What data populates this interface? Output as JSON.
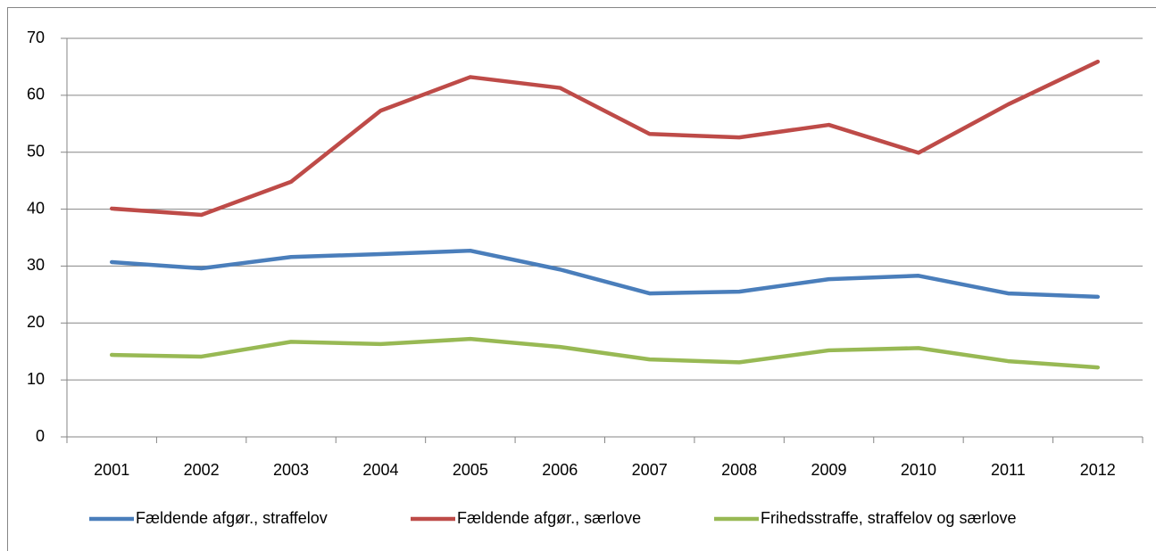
{
  "chart_data": {
    "type": "line",
    "categories": [
      "2001",
      "2002",
      "2003",
      "2004",
      "2005",
      "2006",
      "2007",
      "2008",
      "2009",
      "2010",
      "2011",
      "2012"
    ],
    "series": [
      {
        "name": "Fældende afgør., straffelov",
        "color": "#4a7ebb",
        "values": [
          30.7,
          29.6,
          31.6,
          32.1,
          32.7,
          29.4,
          25.2,
          25.5,
          27.7,
          28.3,
          25.2,
          24.6
        ]
      },
      {
        "name": "Fældende afgør., særlove",
        "color": "#be4b48",
        "values": [
          40.1,
          39.0,
          44.8,
          57.3,
          63.2,
          61.3,
          53.2,
          52.6,
          54.8,
          49.9,
          58.4,
          65.9
        ]
      },
      {
        "name": "Frihedsstraffe, straffelov og særlove",
        "color": "#98b954",
        "values": [
          14.4,
          14.1,
          16.7,
          16.3,
          17.2,
          15.8,
          13.6,
          13.1,
          15.2,
          15.6,
          13.3,
          12.2
        ]
      }
    ],
    "ylim": [
      0,
      70
    ],
    "yticks": [
      0,
      10,
      20,
      30,
      40,
      50,
      60,
      70
    ],
    "grid": true,
    "legend": "bottom"
  }
}
